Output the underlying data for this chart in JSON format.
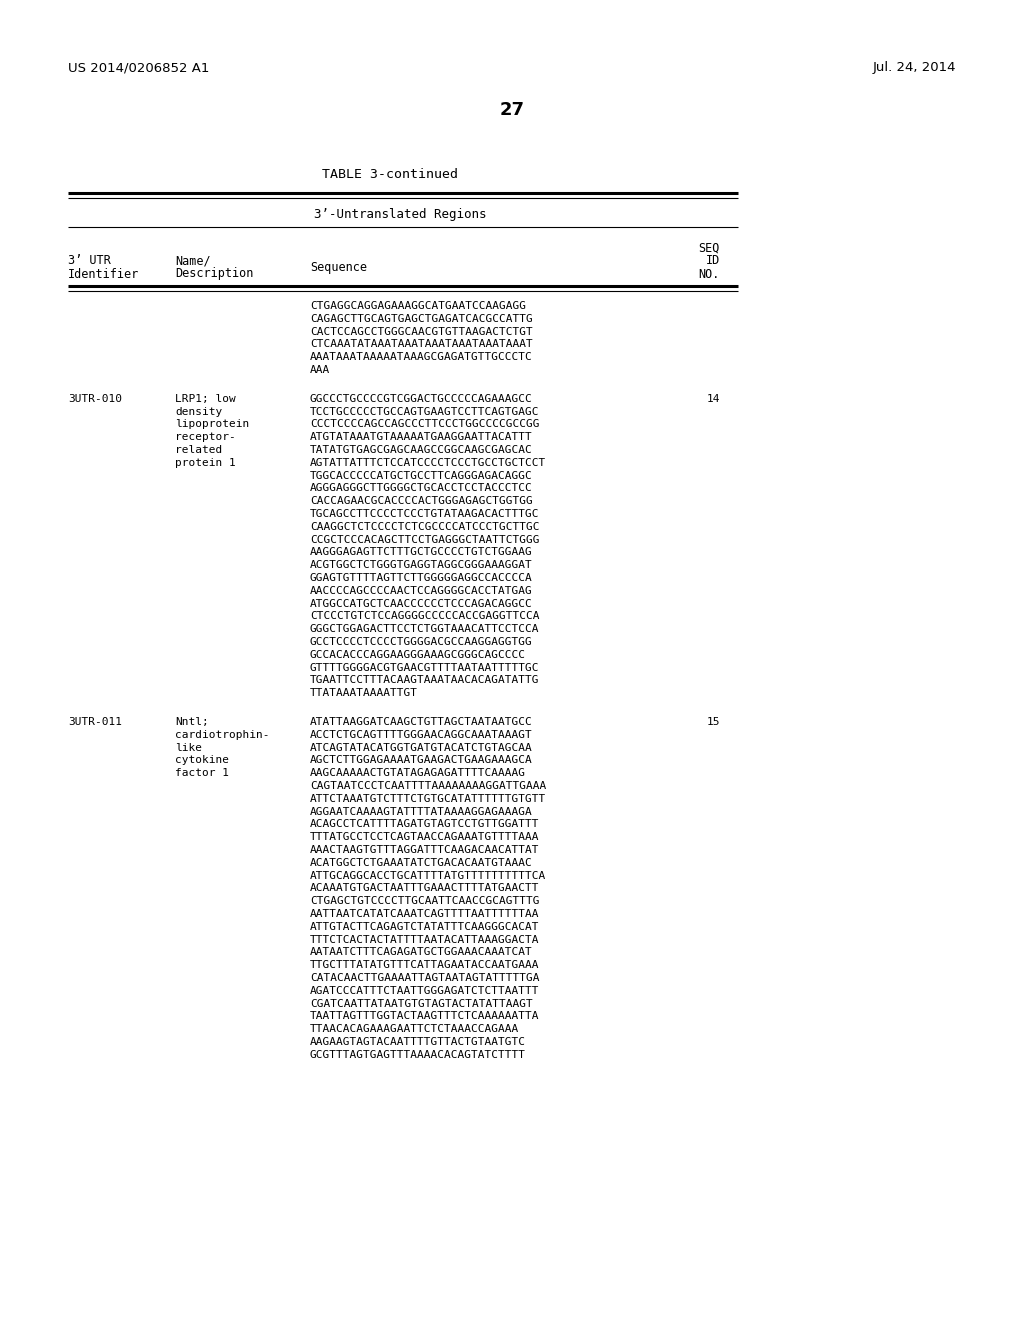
{
  "page_header_left": "US 2014/0206852 A1",
  "page_header_right": "Jul. 24, 2014",
  "page_number": "27",
  "table_title": "TABLE 3-continued",
  "table_subtitle": "3’-Untranslated Regions",
  "background_color": "#ffffff",
  "text_color": "#000000",
  "rows": [
    {
      "id": "",
      "name": "",
      "sequence": "CTGAGGCAGGAGAAAGGCATGAATCCAAGAGG\nCAGAGCTTGCAGTGAGCTGAGATCACGCCATTG\nCACTCCAGCCTGGGCAACGTGTTAAGACTCTGT\nCTCAAATATAAATAAATAAATAAATAAATAAAT\nAAATAAATAAAAATAAAGCGAGATGTTGCCCTC\nAAA",
      "seq_no": ""
    },
    {
      "id": "3UTR-010",
      "name": "LRP1; low\ndensity\nlipoprotein\nreceptor-\nrelated\nprotein 1",
      "sequence": "GGCCCTGCCCCGTCGGACTGCCCCCAGAAAGCC\nTCCTGCCCCCTGCCAGTGAAGTCCTTCAGTGAGC\nCCCTCCCCAGCCAGCCCTTCCCTGGCCCCGCCGG\nATGTATAAATGTAAAAATGAAGGAATTACATTT\nTATATGTGAGCGAGCAAGCCGGCAAGCGAGCAC\nAGTATTATTTCTCCATCCCCTCCCTGCCTGCTCCT\nTGGCACCCCCATGCTGCCTTCAGGGAGACAGGC\nAGGGAGGGCTTGGGGCTGCACCTCCTACCCTCC\nCACCAGAACGCACCCCACTGGGAGAGCTGGTGG\nTGCAGCCTTCCCCTCCCTGTATAAGACACTTTGC\nCAAGGCTCTCCCCTCTCGCCCCATCCCTGCTTGC\nCCGCTCCCACAGCTTCCTGAGGGCTAATTCTGGG\nAAGGGAGAGTTCTTTGCTGCCCCTGTCTGGAAG\nACGTGGCTCTGGGTGAGGTAGGCGGGAAAGGAT\nGGAGTGTTTTAGTTCTTGGGGGAGGCCACCCCA\nAACCCCAGCCCCAACTCCAGGGGCACCTATGAG\nATGGCCATGCTCAACCCCCCTCCCAGACAGGCC\nCTCCCTGTCTCCAGGGGCCCCCACCGAGGTTCCA\nGGGCTGGAGACTTCCTCTGGTAAACATTCCTCCA\nGCCTCCCCTCCCCTGGGGACGCCAAGGAGGTGG\nGCCACACCCAGGAAGGGAAAGCGGGCAGCCCC\nGTTTTGGGGACGTGAACGTTTTAATAATTTTTGC\nTGAATTCCTTTACAAGTAAATAACACAGATATTG\nTTATAAATAAAATTGT",
      "seq_no": "14"
    },
    {
      "id": "3UTR-011",
      "name": "Nntl;\ncardiotrophin-\nlike\ncytokine\nfactor 1",
      "sequence": "ATATTAAGGATCAAGCTGTTAGCTAATAATGCC\nACCTCTGCAGTTTTGGGAACAGGCAAATAAAGT\nATCAGTATACATGGTGATGTACATCTGTAGCAA\nAGCTCTTGGAGAAAATGAAGACTGAAGAAAGCA\nAAGCAAAAACTGTATAGAGAGATTTTCAAAAG\nCAGTAATCCCTCAATTTTAAAAAAAAGGATTGAAA\nATTCTAAATGTCTTTCTGTGCATATTTTTTGTGTT\nAGGAATCAAAAGTATTTTATAAAAGGAGAAAGA\nACAGCCTCATTTTAGATGTAGTCCTGTTGGATTT\nTTTATGCCTCCTCAGTAACCAGAAATGTTTTAAA\nAAACTAAGTGTTTAGGATTTCAAGACAACATTAT\nACATGGCTCTGAAATATCTGACACAATGTAAAC\nATTGCAGGCACCTGCATTTTATGTTTTTTTTTTCA\nACAAATGTGACTAATTTGAAACTTTTATGAACTT\nCTGAGCTGTCCCCTTGCAATTCAACCGCAGTTTG\nAATTAATCATATCAAATCAGTTTTAATTTTTTAA\nATTGTACTTCAGAGTCTATATTTCAAGGGCACAT\nTTTCTCACTACTATTTTAATACATTAAAGGACTA\nAATAATCTTTCAGAGATGCTGGAAACAAATCAT\nTTGCTTTATATGTTTCATTAGAATACCAATGAAA\nCATACAACTTGAAAATTAGTAATAGTATTTTTGA\nAGATCCCATTTCTAATTGGGAGATCTCTTAATTT\nCGATCAATTATAATGTGTAGTACTATATTAAGT\nTAATTAGTTTGGTACTAAGTTTCTCAAAAAATTA\nTTAACACAGAAAGAATTCTCTAAACCAGAAA\nAAGAAGTAGTACAATTTTGTTACTGTAATGTC\nGCGTTTAGTGAGTTTAAAACACAGTATCTTTT",
      "seq_no": "15"
    }
  ]
}
